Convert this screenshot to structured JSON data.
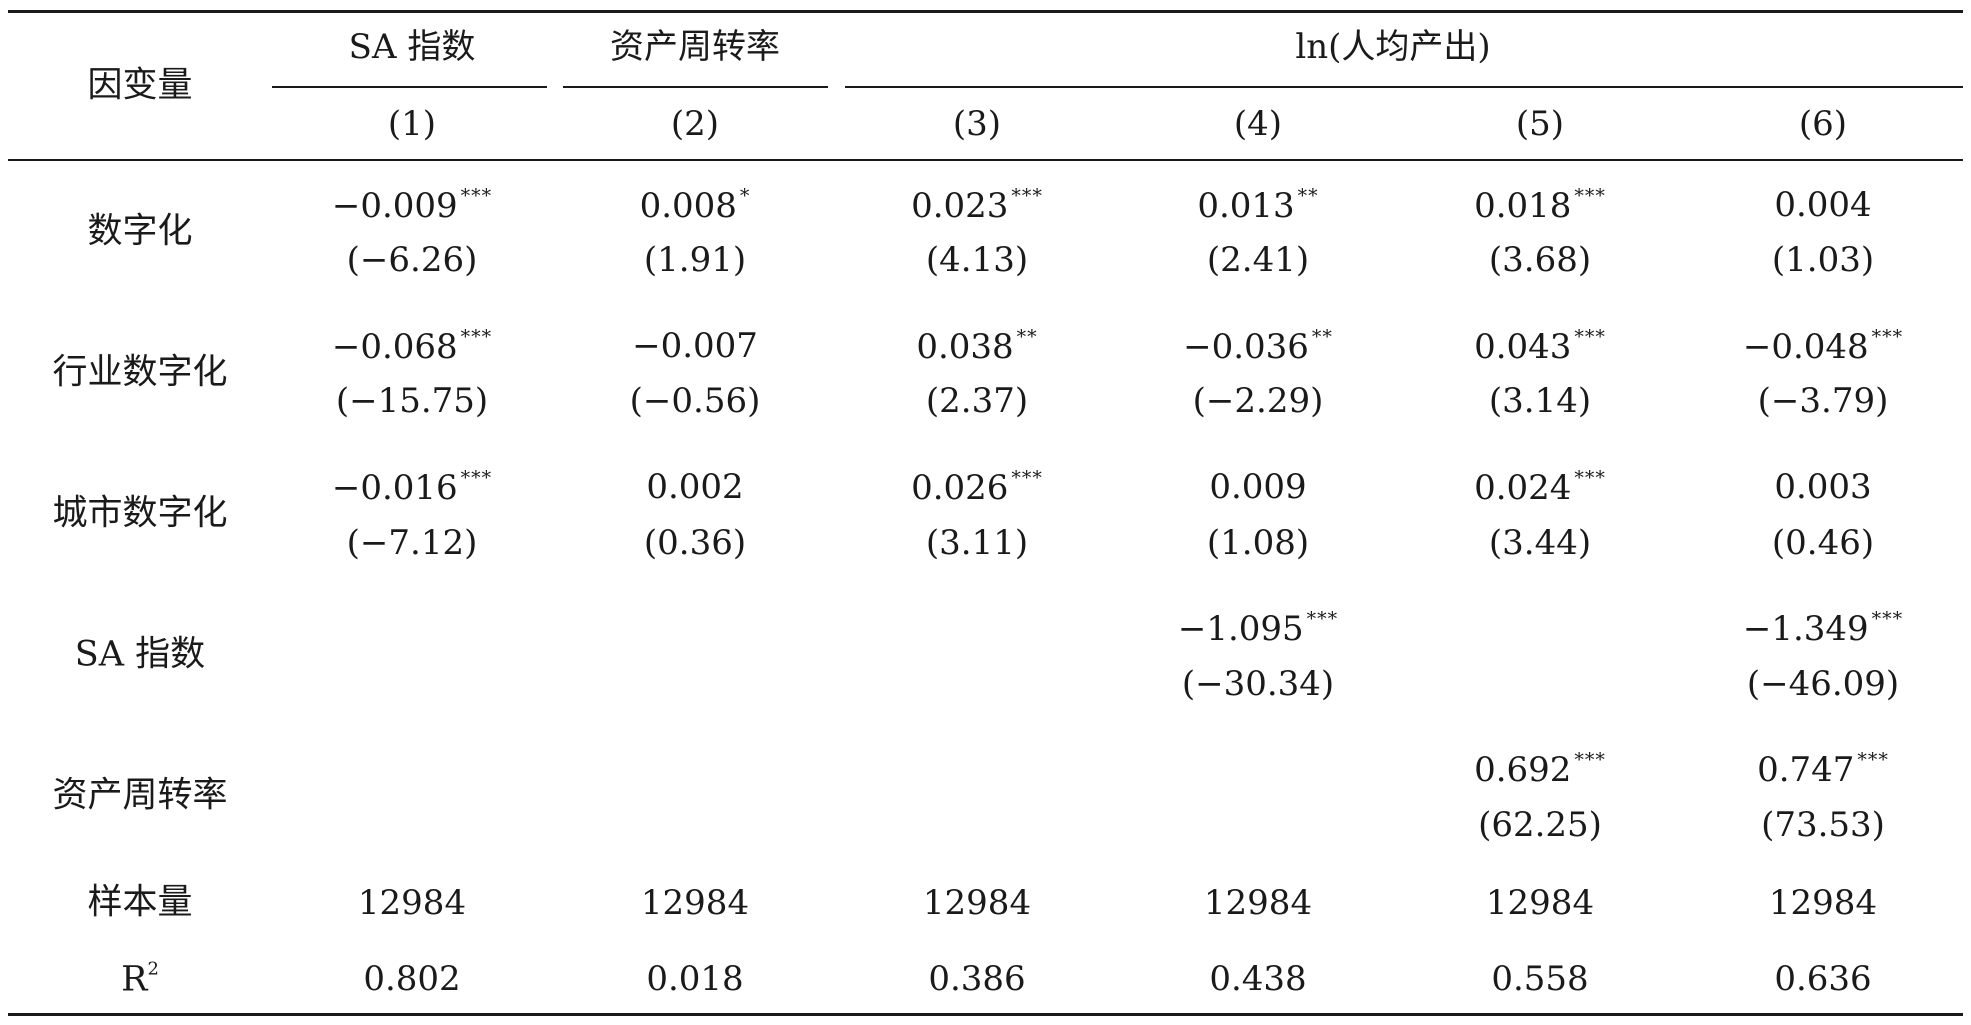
{
  "header": {
    "dep_var_label": "因变量",
    "groups": [
      {
        "label": "SA 指数"
      },
      {
        "label": "资产周转率"
      },
      {
        "label": "ln(人均产出)"
      }
    ],
    "columns": [
      "(1)",
      "(2)",
      "(3)",
      "(4)",
      "(5)",
      "(6)"
    ]
  },
  "rows": [
    {
      "label": "数字化",
      "cells": [
        {
          "coef": "−0.009",
          "stars": "***",
          "t": "(−6.26)"
        },
        {
          "coef": "0.008",
          "stars": "*",
          "t": "(1.91)"
        },
        {
          "coef": "0.023",
          "stars": "***",
          "t": "(4.13)"
        },
        {
          "coef": "0.013",
          "stars": "**",
          "t": "(2.41)"
        },
        {
          "coef": "0.018",
          "stars": "***",
          "t": "(3.68)"
        },
        {
          "coef": "0.004",
          "stars": "",
          "t": "(1.03)"
        }
      ]
    },
    {
      "label": "行业数字化",
      "cells": [
        {
          "coef": "−0.068",
          "stars": "***",
          "t": "(−15.75)"
        },
        {
          "coef": "−0.007",
          "stars": "",
          "t": "(−0.56)"
        },
        {
          "coef": "0.038",
          "stars": "**",
          "t": "(2.37)"
        },
        {
          "coef": "−0.036",
          "stars": "**",
          "t": "(−2.29)"
        },
        {
          "coef": "0.043",
          "stars": "***",
          "t": "(3.14)"
        },
        {
          "coef": "−0.048",
          "stars": "***",
          "t": "(−3.79)"
        }
      ]
    },
    {
      "label": "城市数字化",
      "cells": [
        {
          "coef": "−0.016",
          "stars": "***",
          "t": "(−7.12)"
        },
        {
          "coef": "0.002",
          "stars": "",
          "t": "(0.36)"
        },
        {
          "coef": "0.026",
          "stars": "***",
          "t": "(3.11)"
        },
        {
          "coef": "0.009",
          "stars": "",
          "t": "(1.08)"
        },
        {
          "coef": "0.024",
          "stars": "***",
          "t": "(3.44)"
        },
        {
          "coef": "0.003",
          "stars": "",
          "t": "(0.46)"
        }
      ]
    },
    {
      "label": "SA 指数",
      "cells": [
        null,
        null,
        null,
        {
          "coef": "−1.095",
          "stars": "***",
          "t": "(−30.34)"
        },
        null,
        {
          "coef": "−1.349",
          "stars": "***",
          "t": "(−46.09)"
        }
      ]
    },
    {
      "label": "资产周转率",
      "cells": [
        null,
        null,
        null,
        null,
        {
          "coef": "0.692",
          "stars": "***",
          "t": "(62.25)"
        },
        {
          "coef": "0.747",
          "stars": "***",
          "t": "(73.53)"
        }
      ]
    }
  ],
  "stats": [
    {
      "label": "样本量",
      "values": [
        "12984",
        "12984",
        "12984",
        "12984",
        "12984",
        "12984"
      ]
    },
    {
      "label": "R",
      "label_sup": "2",
      "values": [
        "0.802",
        "0.018",
        "0.386",
        "0.438",
        "0.558",
        "0.636"
      ]
    }
  ]
}
